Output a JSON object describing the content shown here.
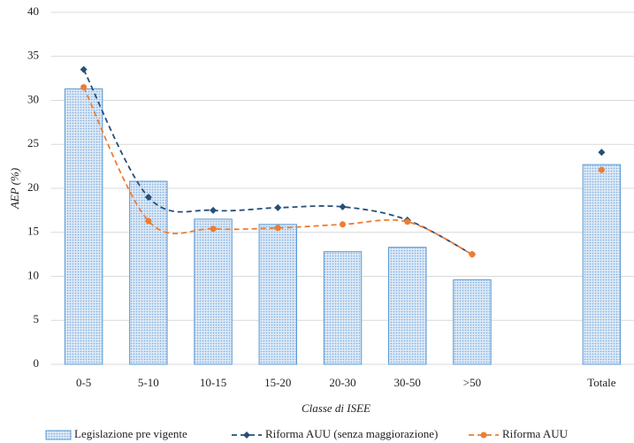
{
  "chart_data": {
    "type": "bar",
    "categories": [
      "0-5",
      "5-10",
      "10-15",
      "15-20",
      "20-30",
      "30-50",
      ">50",
      null,
      "Totale"
    ],
    "series": [
      {
        "name": "Legislazione pre vigente",
        "type": "bar",
        "color": "#5b9bd5",
        "values": [
          31.3,
          20.8,
          16.5,
          15.9,
          12.8,
          13.3,
          9.6,
          null,
          22.7
        ]
      },
      {
        "name": "Riforma AUU (senza maggiorazione)",
        "type": "line",
        "marker": "diamond",
        "color": "#264f78",
        "values": [
          33.5,
          19.0,
          17.5,
          17.8,
          17.9,
          16.4,
          12.5,
          null,
          24.1
        ]
      },
      {
        "name": "Riforma AUU",
        "type": "line",
        "marker": "circle",
        "color": "#ed7d31",
        "values": [
          31.5,
          16.3,
          15.4,
          15.5,
          15.9,
          16.2,
          12.5,
          null,
          22.1
        ]
      }
    ],
    "xlabel": "Classe di ISEE",
    "ylabel": "AEP (%)",
    "ylim": [
      0,
      40
    ],
    "yticks": [
      0,
      5,
      10,
      15,
      20,
      25,
      30,
      35,
      40
    ],
    "grid": true,
    "legend": "bottom",
    "smooth": true
  }
}
